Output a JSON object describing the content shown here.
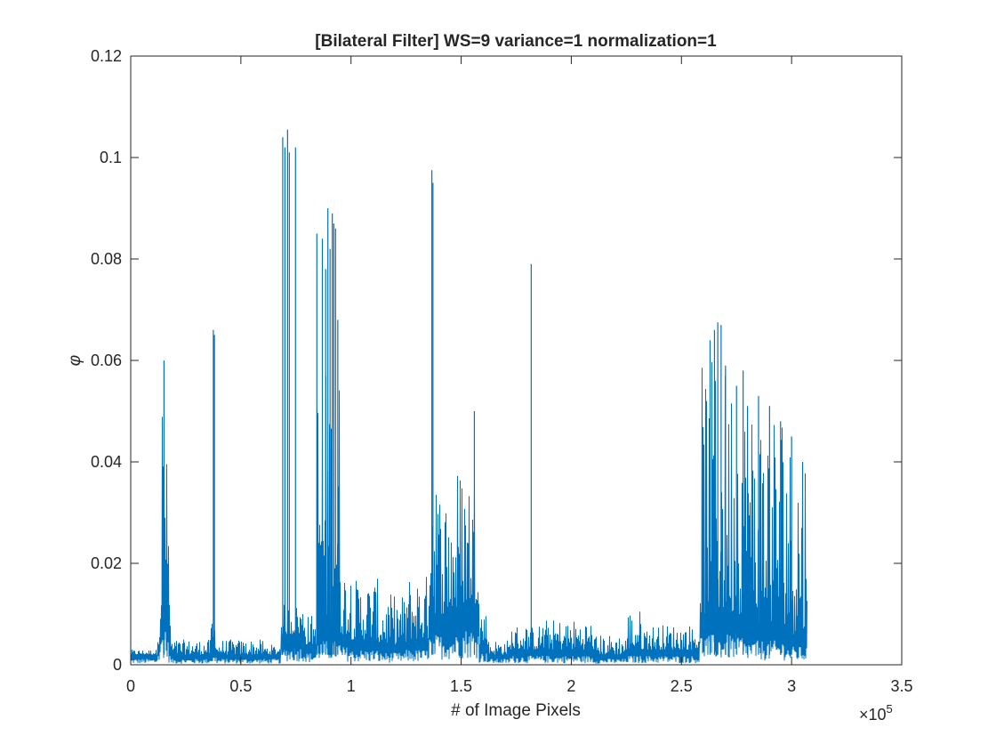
{
  "chart_data": {
    "type": "line",
    "title": "[Bilateral Filter] WS=9 variance=1 normalization=1",
    "xlabel": "# of Image Pixels",
    "ylabel": "φ",
    "x_exponent_label": "×10",
    "x_exponent_power": "5",
    "xlim": [
      0,
      3.5
    ],
    "ylim": [
      0,
      0.12
    ],
    "x_ticks": [
      0,
      0.5,
      1,
      1.5,
      2,
      2.5,
      3,
      3.5
    ],
    "x_tick_labels": [
      "0",
      "0.5",
      "1",
      "1.5",
      "2",
      "2.5",
      "3",
      "3.5"
    ],
    "y_ticks": [
      0,
      0.02,
      0.04,
      0.06,
      0.08,
      0.1,
      0.12
    ],
    "y_tick_labels": [
      "0",
      "0.02",
      "0.04",
      "0.06",
      "0.08",
      "0.1",
      "0.12"
    ],
    "grid": false,
    "line_color": "#0072BD",
    "data_x_end": 3.07,
    "segments": [
      {
        "x": [
          0.0,
          0.12
        ],
        "base": 0.002,
        "peak": 0.003
      },
      {
        "x": [
          0.12,
          0.13
        ],
        "base": 0.004,
        "peak": 0.015
      },
      {
        "x": [
          0.13,
          0.14
        ],
        "base": 0.008,
        "peak": 0.02
      },
      {
        "x": [
          0.14,
          0.15
        ],
        "base": 0.012,
        "peak": 0.06
      },
      {
        "x": [
          0.15,
          0.16
        ],
        "base": 0.015,
        "peak": 0.056
      },
      {
        "x": [
          0.16,
          0.17
        ],
        "base": 0.008,
        "peak": 0.042
      },
      {
        "x": [
          0.17,
          0.18
        ],
        "base": 0.004,
        "peak": 0.02
      },
      {
        "x": [
          0.18,
          0.36
        ],
        "base": 0.002,
        "peak": 0.005
      },
      {
        "x": [
          0.36,
          0.39
        ],
        "base": 0.003,
        "peak": 0.01
      },
      {
        "x": [
          0.39,
          0.6
        ],
        "base": 0.002,
        "peak": 0.005
      },
      {
        "x": [
          0.6,
          0.68
        ],
        "base": 0.002,
        "peak": 0.004
      },
      {
        "x": [
          0.68,
          0.79
        ],
        "base": 0.006,
        "peak": 0.012
      },
      {
        "x": [
          0.79,
          0.84
        ],
        "base": 0.004,
        "peak": 0.01
      },
      {
        "x": [
          0.84,
          0.95
        ],
        "base": 0.008,
        "peak": 0.06
      },
      {
        "x": [
          0.95,
          1.0
        ],
        "base": 0.006,
        "peak": 0.02
      },
      {
        "x": [
          1.0,
          1.12
        ],
        "base": 0.005,
        "peak": 0.017
      },
      {
        "x": [
          1.12,
          1.25
        ],
        "base": 0.004,
        "peak": 0.014
      },
      {
        "x": [
          1.25,
          1.35
        ],
        "base": 0.005,
        "peak": 0.018
      },
      {
        "x": [
          1.35,
          1.39
        ],
        "base": 0.01,
        "peak": 0.05
      },
      {
        "x": [
          1.39,
          1.48
        ],
        "base": 0.01,
        "peak": 0.036
      },
      {
        "x": [
          1.48,
          1.58
        ],
        "base": 0.012,
        "peak": 0.04
      },
      {
        "x": [
          1.58,
          1.62
        ],
        "base": 0.004,
        "peak": 0.012
      },
      {
        "x": [
          1.62,
          1.72
        ],
        "base": 0.002,
        "peak": 0.005
      },
      {
        "x": [
          1.72,
          1.86
        ],
        "base": 0.003,
        "peak": 0.008
      },
      {
        "x": [
          1.86,
          2.1
        ],
        "base": 0.003,
        "peak": 0.009
      },
      {
        "x": [
          2.1,
          2.25
        ],
        "base": 0.002,
        "peak": 0.006
      },
      {
        "x": [
          2.25,
          2.32
        ],
        "base": 0.003,
        "peak": 0.011
      },
      {
        "x": [
          2.32,
          2.58
        ],
        "base": 0.003,
        "peak": 0.008
      },
      {
        "x": [
          2.58,
          2.78
        ],
        "base": 0.01,
        "peak": 0.06
      },
      {
        "x": [
          2.78,
          2.98
        ],
        "base": 0.008,
        "peak": 0.054
      },
      {
        "x": [
          2.98,
          3.07
        ],
        "base": 0.006,
        "peak": 0.046
      }
    ],
    "spikes": [
      {
        "x": 0.151,
        "y": 0.06
      },
      {
        "x": 0.375,
        "y": 0.066
      },
      {
        "x": 0.38,
        "y": 0.065
      },
      {
        "x": 0.69,
        "y": 0.104
      },
      {
        "x": 0.7,
        "y": 0.102
      },
      {
        "x": 0.712,
        "y": 0.1055
      },
      {
        "x": 0.72,
        "y": 0.101
      },
      {
        "x": 0.748,
        "y": 0.102
      },
      {
        "x": 0.845,
        "y": 0.085
      },
      {
        "x": 0.87,
        "y": 0.084
      },
      {
        "x": 0.885,
        "y": 0.078
      },
      {
        "x": 0.895,
        "y": 0.09
      },
      {
        "x": 0.905,
        "y": 0.082
      },
      {
        "x": 0.915,
        "y": 0.089
      },
      {
        "x": 0.922,
        "y": 0.087
      },
      {
        "x": 0.93,
        "y": 0.086
      },
      {
        "x": 0.94,
        "y": 0.068
      },
      {
        "x": 1.367,
        "y": 0.0975
      },
      {
        "x": 1.372,
        "y": 0.095
      },
      {
        "x": 1.56,
        "y": 0.05
      },
      {
        "x": 1.818,
        "y": 0.079
      },
      {
        "x": 2.63,
        "y": 0.064
      },
      {
        "x": 2.65,
        "y": 0.066
      },
      {
        "x": 2.665,
        "y": 0.0675
      },
      {
        "x": 2.68,
        "y": 0.067
      },
      {
        "x": 2.7,
        "y": 0.059
      },
      {
        "x": 2.75,
        "y": 0.055
      },
      {
        "x": 2.78,
        "y": 0.058
      },
      {
        "x": 2.8,
        "y": 0.051
      },
      {
        "x": 2.85,
        "y": 0.053
      },
      {
        "x": 2.9,
        "y": 0.051
      },
      {
        "x": 2.95,
        "y": 0.048
      },
      {
        "x": 3.0,
        "y": 0.045
      },
      {
        "x": 3.05,
        "y": 0.04
      }
    ]
  }
}
